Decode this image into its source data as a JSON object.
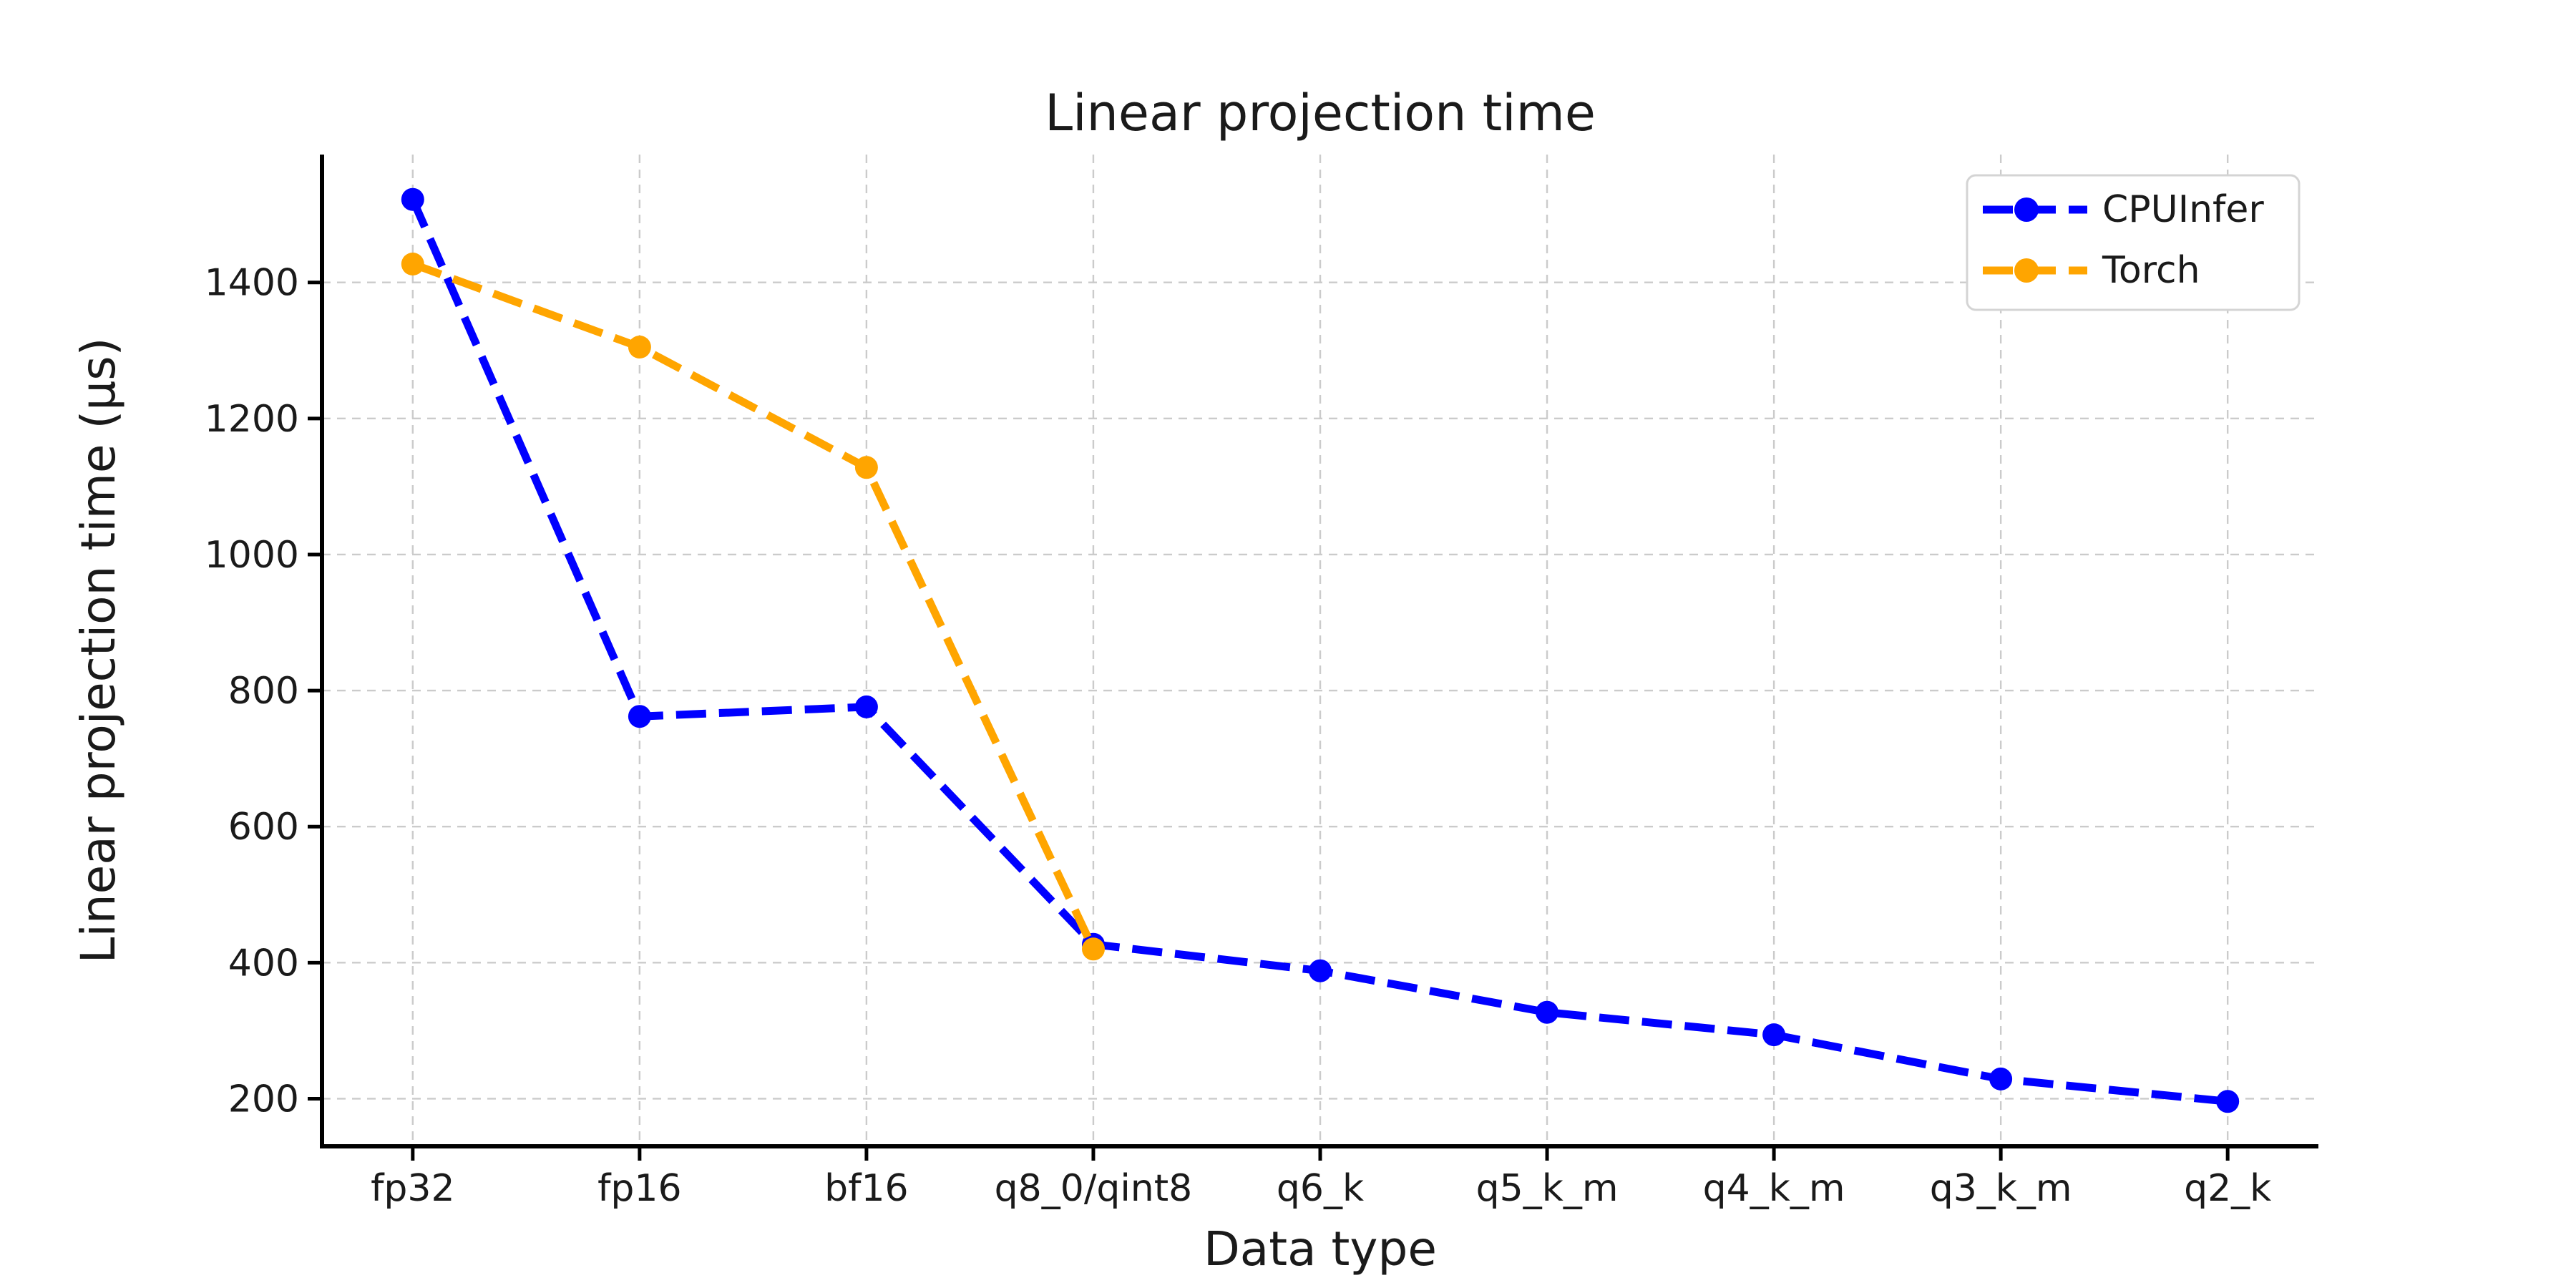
{
  "chart_data": {
    "type": "line",
    "title": "Linear projection time",
    "xlabel": "Data type",
    "ylabel": "Linear projection time (μs)",
    "categories": [
      "fp32",
      "fp16",
      "bf16",
      "q8_0/qint8",
      "q6_k",
      "q5_k_m",
      "q4_k_m",
      "q3_k_m",
      "q2_k"
    ],
    "series": [
      {
        "name": "CPUInfer",
        "color": "#0000ff",
        "linestyle": "dashed",
        "marker": "circle",
        "values": [
          1522,
          762,
          776,
          427,
          388,
          327,
          294,
          229,
          196
        ]
      },
      {
        "name": "Torch",
        "color": "#ffa500",
        "linestyle": "dashed",
        "marker": "circle",
        "values": [
          1427,
          1305,
          1128,
          420
        ]
      }
    ],
    "yticks": [
      200,
      400,
      600,
      800,
      1000,
      1200,
      1400
    ],
    "ylim": [
      130,
      1588
    ],
    "x_margin": 0.4,
    "grid": true,
    "legend": {
      "position": "upper right",
      "labels": [
        "CPUInfer",
        "Torch"
      ]
    }
  },
  "style": {
    "background": "#ffffff",
    "text_color": "#1a1a1a",
    "grid_color": "#cbcbcb",
    "spine_color": "#000000",
    "legend_border": "#d4d4d4"
  }
}
